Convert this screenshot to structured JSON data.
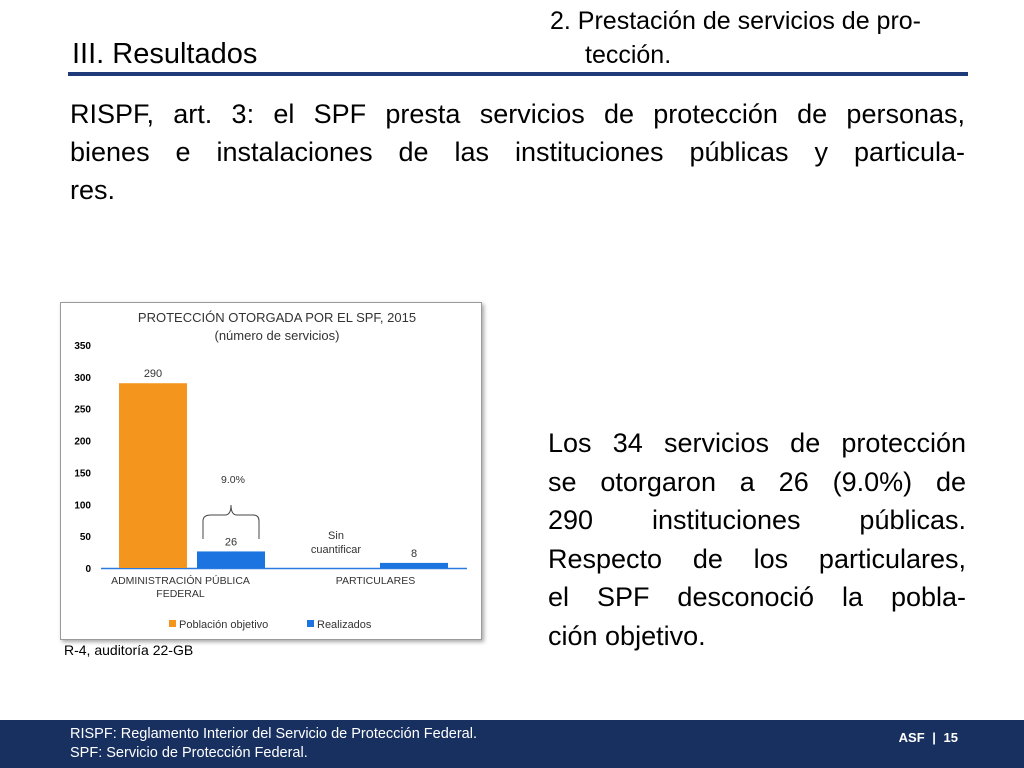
{
  "header": {
    "section": "III. Resultados",
    "subsection_line1": "2. Prestación de servicios de pro-",
    "subsection_line2": "tección."
  },
  "intro_lines": [
    "RISPF, art. 3: el SPF presta servicios de protección de personas,",
    "bienes e instalaciones de las instituciones públicas y particula-",
    "res."
  ],
  "chart_data": {
    "type": "bar",
    "title_line1": "PROTECCIÓN OTORGADA POR EL SPF, 2015",
    "title_line2": "(número de servicios)",
    "category_labels": [
      [
        "ADMINISTRACIÓN PÚBLICA",
        "FEDERAL"
      ],
      [
        "PARTICULARES"
      ]
    ],
    "series": [
      {
        "name": "Población objetivo",
        "color": "#f4961e",
        "values": [
          290,
          null
        ],
        "labels": [
          "290",
          ""
        ]
      },
      {
        "name": "Realizados",
        "color": "#1c74e0",
        "values": [
          26,
          8
        ],
        "labels": [
          "26",
          "8"
        ]
      }
    ],
    "missing_label_lines": [
      "Sin",
      "cuantificar"
    ],
    "annotation": "9.0%",
    "yticks": [
      "0",
      "50",
      "100",
      "150",
      "200",
      "250",
      "300",
      "350"
    ],
    "ylim": [
      0,
      350
    ],
    "grid": false,
    "legend_position": "bottom"
  },
  "source": "R-4, auditoría 22-GB",
  "summary_lines": [
    "Los 34 servicios de protección",
    "se otorgaron a 26 (9.0%) de",
    "290 instituciones públicas.",
    "Respecto de los particulares,",
    "el SPF desconoció la pobla-",
    "ción objetivo."
  ],
  "footer": {
    "note1": "RISPF: Reglamento Interior del Servicio de Protección Federal.",
    "note2": "SPF: Servicio de Protección Federal.",
    "org": "ASF",
    "separator": "|",
    "page": "15"
  },
  "colors": {
    "header_rule": "#1f3a78",
    "footer_bg": "#17305f",
    "bar_population": "#f4961e",
    "bar_done": "#1c74e0"
  }
}
